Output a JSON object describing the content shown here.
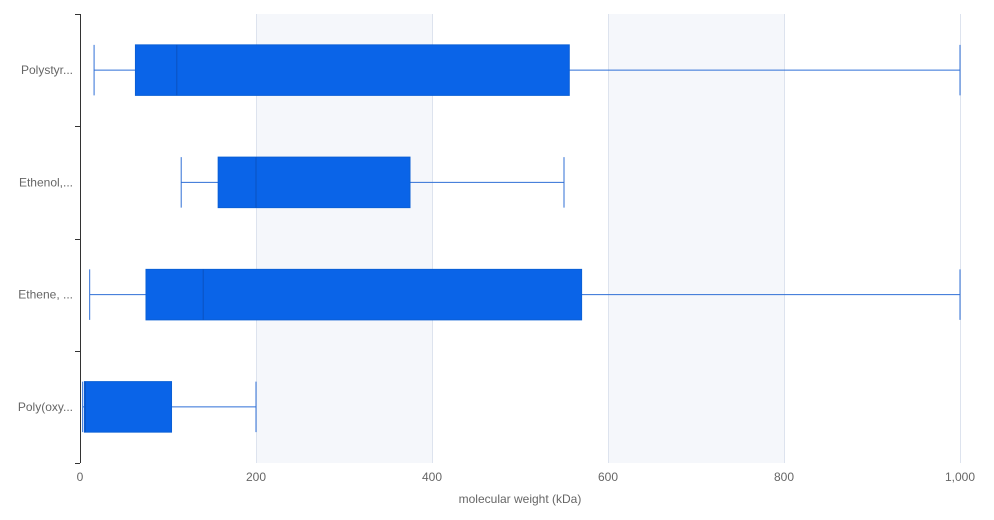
{
  "chart_data": {
    "type": "boxplot",
    "orientation": "horizontal",
    "xlabel": "molecular weight (kDa)",
    "xlim": [
      0,
      1000
    ],
    "x_ticks": [
      "0",
      "200",
      "400",
      "600",
      "800",
      "1,000"
    ],
    "x_tick_values": [
      0,
      200,
      400,
      600,
      800,
      1000
    ],
    "categories": [
      "Polystyr...",
      "Ethenol,...",
      "Ethene, ...",
      "Poly(oxy..."
    ],
    "boxes": [
      {
        "min": 16,
        "q1": 63,
        "median": 110,
        "q3": 556,
        "max": 1000
      },
      {
        "min": 115,
        "q1": 157,
        "median": 200,
        "q3": 375,
        "max": 550
      },
      {
        "min": 11,
        "q1": 75,
        "median": 140,
        "q3": 570,
        "max": 1000
      },
      {
        "min": 3,
        "q1": 5,
        "median": 6,
        "q3": 104,
        "max": 200
      }
    ],
    "grid": {
      "vertical": true,
      "alternating_bands": true
    },
    "colors": {
      "box_fill": "#0a64e8",
      "box_stroke": "#0a5fd6",
      "whisker": "#2f6fd6",
      "band": "#f5f7fb",
      "grid": "#dde3ee",
      "axis": "#333333"
    }
  }
}
